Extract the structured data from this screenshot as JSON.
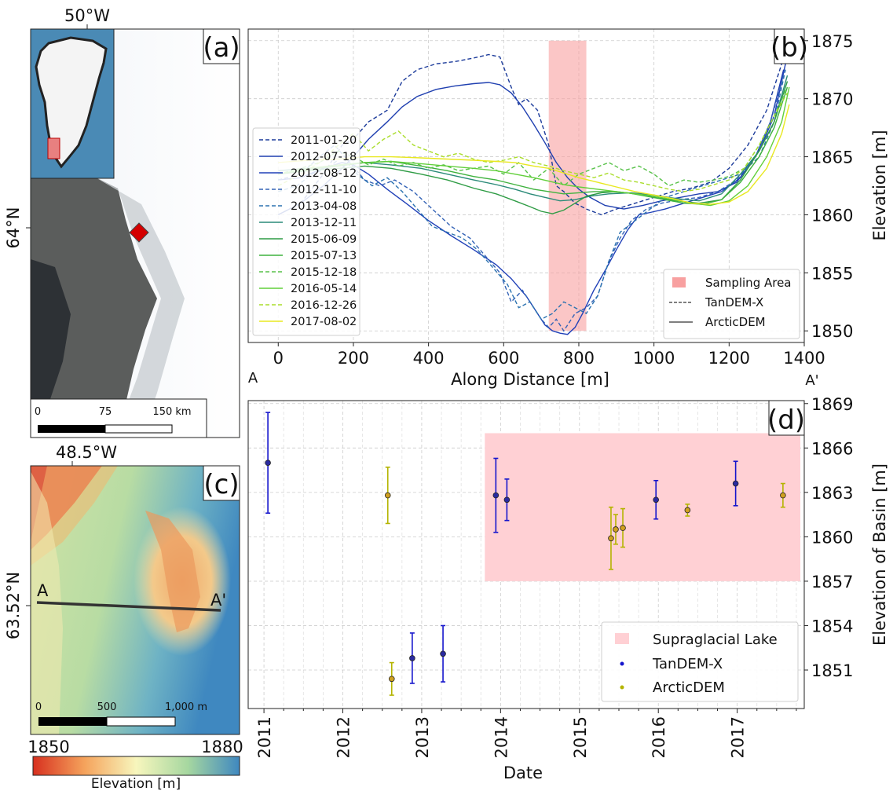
{
  "panel_a": {
    "tag": "(a)",
    "lon_label": "50°W",
    "lat_label": "64°N",
    "scalebar": {
      "labels": [
        "0",
        "75",
        "150 km"
      ]
    }
  },
  "panel_c": {
    "tag": "(c)",
    "lon_label": "48.5°W",
    "lat_label": "63.52°N",
    "profile_start": "A",
    "profile_end": "A'",
    "scalebar": {
      "labels": [
        "0",
        "500",
        "1,000 m"
      ]
    },
    "colorbar": {
      "min_label": "1850",
      "max_label": "1880",
      "label": "Elevation [m]"
    },
    "colors": {
      "low": "#d7301f",
      "mid": "#f7f6bd",
      "high": "#3f88c0"
    }
  },
  "chart_data": [
    {
      "id": "b",
      "tag": "(b)",
      "type": "line",
      "xlabel": "Along Distance [m]",
      "ylabel": "Elevation [m]",
      "xlim": [
        -80,
        1400
      ],
      "ylim": [
        1849,
        1876
      ],
      "xticks": [
        0,
        200,
        400,
        600,
        800,
        1000,
        1200,
        1400
      ],
      "yticks": [
        1850,
        1855,
        1860,
        1865,
        1870,
        1875
      ],
      "x_endpoints": {
        "start": "A",
        "end": "A'"
      },
      "grid": true,
      "sampling_area": {
        "x0": 720,
        "x1": 820,
        "color": "#f8a0a0"
      },
      "legend_right": {
        "position": "bottom-right",
        "items": [
          "Sampling Area",
          "TanDEM-X",
          "ArcticDEM"
        ]
      },
      "legend_left": {
        "position": "center-left"
      },
      "series": [
        {
          "name": "2011-01-20",
          "style": "dashed",
          "color": "#1b3a9a",
          "x": [
            0,
            60,
            120,
            170,
            200,
            240,
            290,
            330,
            370,
            420,
            470,
            520,
            560,
            590,
            620,
            640,
            660,
            690,
            720,
            740,
            760,
            790,
            820,
            860,
            900,
            950,
            1000,
            1050,
            1100,
            1150,
            1200,
            1250,
            1300,
            1340
          ],
          "y": [
            1860,
            1861,
            1863.5,
            1866,
            1866.5,
            1868,
            1869,
            1871.5,
            1872.5,
            1873,
            1873.2,
            1873.5,
            1873.8,
            1873.6,
            1871,
            1869.5,
            1870,
            1869,
            1866,
            1862.5,
            1862,
            1861,
            1860.5,
            1860,
            1860.5,
            1861,
            1861.5,
            1862,
            1862.3,
            1862.8,
            1864,
            1866,
            1869,
            1873
          ]
        },
        {
          "name": "2012-07-18",
          "style": "solid",
          "color": "#1f3fb0",
          "x": [
            0,
            60,
            120,
            170,
            200,
            240,
            290,
            330,
            370,
            420,
            470,
            520,
            560,
            590,
            620,
            650,
            680,
            710,
            740,
            770,
            800,
            830,
            870,
            920,
            970,
            1020,
            1070,
            1120,
            1170,
            1220,
            1270,
            1310,
            1345
          ],
          "y": [
            1860,
            1861,
            1862.5,
            1864,
            1865,
            1866.5,
            1868,
            1869.3,
            1870.2,
            1870.8,
            1871.1,
            1871.3,
            1871.4,
            1871.2,
            1870.5,
            1869.3,
            1867.8,
            1866.2,
            1864.5,
            1863.2,
            1862.2,
            1861.5,
            1860.8,
            1860.5,
            1860.8,
            1861.2,
            1861.5,
            1861.8,
            1862,
            1862.8,
            1865,
            1868,
            1872.5
          ]
        },
        {
          "name": "2012-08-12",
          "style": "solid",
          "color": "#2040b8",
          "x": [
            0,
            60,
            120,
            170,
            200,
            240,
            290,
            340,
            400,
            460,
            520,
            580,
            620,
            660,
            690,
            710,
            730,
            750,
            770,
            790,
            810,
            840,
            870,
            900,
            930,
            960,
            990,
            1030,
            1080,
            1130,
            1180,
            1230,
            1280,
            1320,
            1350
          ],
          "y": [
            1863,
            1863.2,
            1864,
            1864.5,
            1864.3,
            1863.5,
            1862.2,
            1861,
            1859.5,
            1858.2,
            1857,
            1855.7,
            1854.5,
            1853,
            1851.5,
            1850.5,
            1850,
            1849.8,
            1849.7,
            1850.3,
            1851.5,
            1853.5,
            1855.2,
            1857,
            1858.7,
            1860,
            1860.2,
            1860.5,
            1861,
            1861.5,
            1862,
            1863.2,
            1865.5,
            1868.5,
            1873
          ]
        },
        {
          "name": "2012-11-10",
          "style": "dashed",
          "color": "#3463b6",
          "x": [
            0,
            60,
            110,
            150,
            190,
            230,
            270,
            310,
            360,
            410,
            460,
            510,
            550,
            590,
            620,
            650,
            680,
            700,
            720,
            740,
            760,
            790,
            820,
            850,
            880,
            910,
            940,
            980,
            1020,
            1070,
            1120,
            1170,
            1220,
            1270,
            1310,
            1345
          ],
          "y": [
            1863,
            1863.5,
            1865,
            1866,
            1864.5,
            1863,
            1862.5,
            1863,
            1862,
            1860.5,
            1859,
            1858,
            1856.5,
            1855,
            1852.5,
            1853.5,
            1852,
            1851,
            1850.3,
            1851,
            1850,
            1851.5,
            1852,
            1853,
            1856,
            1858,
            1859.5,
            1860.5,
            1861,
            1861.3,
            1861.5,
            1862,
            1863,
            1865,
            1868,
            1872
          ]
        },
        {
          "name": "2013-04-08",
          "style": "dashed",
          "color": "#2b72b0",
          "x": [
            0,
            50,
            90,
            130,
            170,
            210,
            250,
            290,
            330,
            370,
            410,
            450,
            490,
            530,
            570,
            610,
            640,
            670,
            700,
            730,
            760,
            790,
            820,
            850,
            880,
            910,
            950,
            990,
            1030,
            1080,
            1130,
            1180,
            1230,
            1280,
            1320,
            1350
          ],
          "y": [
            1862,
            1862.5,
            1863.5,
            1864,
            1865,
            1863.5,
            1862.5,
            1863.2,
            1862,
            1860.5,
            1859,
            1858.5,
            1858,
            1857,
            1855.5,
            1854,
            1852,
            1852.5,
            1851,
            1851.5,
            1852.5,
            1852,
            1851.5,
            1853,
            1856,
            1858.5,
            1859.5,
            1860.5,
            1861.5,
            1862,
            1862.5,
            1863,
            1863.5,
            1865,
            1868,
            1872.5
          ]
        },
        {
          "name": "2013-12-11",
          "style": "solid",
          "color": "#2a8a78",
          "x": [
            0,
            80,
            160,
            230,
            300,
            380,
            450,
            520,
            580,
            630,
            670,
            710,
            750,
            790,
            830,
            880,
            940,
            1000,
            1060,
            1120,
            1180,
            1230,
            1280,
            1320,
            1355
          ],
          "y": [
            1863.8,
            1864,
            1864.2,
            1864.5,
            1864.3,
            1864,
            1863.5,
            1863,
            1862.6,
            1862.2,
            1861.8,
            1861.5,
            1861.2,
            1861.3,
            1861.6,
            1861.8,
            1861.9,
            1861.7,
            1861.4,
            1861.2,
            1861.8,
            1863.5,
            1865.5,
            1868,
            1872
          ]
        },
        {
          "name": "2015-06-09",
          "style": "solid",
          "color": "#2f9c45",
          "x": [
            0,
            80,
            160,
            230,
            300,
            380,
            450,
            520,
            580,
            630,
            670,
            700,
            730,
            760,
            790,
            820,
            860,
            900,
            950,
            1000,
            1060,
            1120,
            1180,
            1230,
            1280,
            1320,
            1355
          ],
          "y": [
            1863.5,
            1863.8,
            1864,
            1864.2,
            1864,
            1863.5,
            1863,
            1862.3,
            1861.8,
            1861.2,
            1860.7,
            1860.3,
            1860.1,
            1860.4,
            1861,
            1861.6,
            1861.9,
            1862,
            1861.8,
            1861.5,
            1861.2,
            1861,
            1861.3,
            1863,
            1865.5,
            1868,
            1871.5
          ]
        },
        {
          "name": "2015-07-13",
          "style": "solid",
          "color": "#3fb23e",
          "x": [
            0,
            80,
            160,
            230,
            300,
            380,
            450,
            520,
            580,
            630,
            680,
            720,
            760,
            800,
            840,
            880,
            930,
            980,
            1030,
            1080,
            1130,
            1180,
            1230,
            1280,
            1320,
            1355
          ],
          "y": [
            1863.5,
            1863.9,
            1864.2,
            1864.5,
            1864.6,
            1864.2,
            1863.8,
            1863.3,
            1863,
            1862.6,
            1862.2,
            1862,
            1861.8,
            1861.9,
            1862,
            1862,
            1861.9,
            1861.6,
            1861.3,
            1861,
            1860.9,
            1861.3,
            1862.8,
            1865,
            1867.5,
            1871
          ]
        },
        {
          "name": "2015-12-18",
          "style": "dashed",
          "color": "#58c24a",
          "x": [
            0,
            60,
            110,
            160,
            200,
            240,
            280,
            320,
            360,
            400,
            440,
            480,
            520,
            560,
            600,
            640,
            680,
            720,
            760,
            800,
            840,
            880,
            920,
            960,
            1000,
            1040,
            1080,
            1120,
            1160,
            1200,
            1240,
            1280,
            1320,
            1355
          ],
          "y": [
            1863.5,
            1864,
            1864.5,
            1865.5,
            1865,
            1864.3,
            1864.8,
            1864.2,
            1864.5,
            1864,
            1864.3,
            1863.8,
            1864,
            1864.2,
            1863.5,
            1864.5,
            1863,
            1864,
            1862.5,
            1863.5,
            1864,
            1864.5,
            1863.8,
            1864.2,
            1863.5,
            1862.5,
            1863,
            1862.8,
            1863,
            1863.3,
            1864,
            1866,
            1868.5,
            1871
          ]
        },
        {
          "name": "2016-05-14",
          "style": "solid",
          "color": "#61cf3a",
          "x": [
            0,
            80,
            160,
            230,
            300,
            380,
            450,
            520,
            580,
            630,
            680,
            720,
            760,
            800,
            850,
            900,
            950,
            1000,
            1050,
            1100,
            1150,
            1200,
            1250,
            1300,
            1340,
            1360
          ],
          "y": [
            1863.5,
            1864,
            1864.3,
            1864.5,
            1864.6,
            1864.4,
            1864.2,
            1864,
            1863.8,
            1863.5,
            1863.2,
            1862.9,
            1862.6,
            1862.4,
            1862.2,
            1862,
            1861.8,
            1861.6,
            1861.3,
            1861,
            1860.8,
            1861.2,
            1862.5,
            1865,
            1868,
            1871
          ]
        },
        {
          "name": "2016-12-26",
          "style": "dashed",
          "color": "#aadd2c",
          "x": [
            0,
            60,
            110,
            160,
            200,
            240,
            280,
            320,
            360,
            400,
            440,
            480,
            520,
            560,
            600,
            640,
            680,
            720,
            760,
            800,
            840,
            880,
            920,
            960,
            1000,
            1040,
            1080,
            1120,
            1160,
            1200,
            1240,
            1280,
            1320,
            1355
          ],
          "y": [
            1862.5,
            1863.5,
            1864.5,
            1866,
            1867,
            1865.5,
            1866.5,
            1867.2,
            1866,
            1865.5,
            1865,
            1865.3,
            1864.8,
            1864.5,
            1864.7,
            1865,
            1864.5,
            1864.2,
            1863.8,
            1863.5,
            1863.2,
            1863.6,
            1863,
            1862.8,
            1862.5,
            1862.2,
            1862,
            1862.2,
            1862.6,
            1863,
            1864,
            1866,
            1868.5,
            1870.5
          ]
        },
        {
          "name": "2017-08-02",
          "style": "solid",
          "color": "#e8e820",
          "x": [
            0,
            80,
            160,
            230,
            300,
            380,
            450,
            520,
            580,
            630,
            680,
            720,
            760,
            800,
            850,
            900,
            950,
            1000,
            1050,
            1100,
            1150,
            1200,
            1250,
            1300,
            1340,
            1360
          ],
          "y": [
            1864.5,
            1864.7,
            1864.8,
            1865,
            1865,
            1864.9,
            1864.8,
            1864.7,
            1864.6,
            1864.5,
            1864.2,
            1864,
            1863.6,
            1863.2,
            1862.8,
            1862.4,
            1862,
            1861.7,
            1861.4,
            1861,
            1860.9,
            1861.1,
            1862,
            1864,
            1867,
            1869.5
          ]
        }
      ]
    },
    {
      "id": "d",
      "tag": "(d)",
      "type": "scatter",
      "xlabel": "Date",
      "ylabel": "Elevation of Basin [m]",
      "xlim": [
        2010.8,
        2017.85
      ],
      "ylim": [
        1848.4,
        1869.2
      ],
      "xticks": [
        2011,
        2012,
        2013,
        2014,
        2015,
        2016,
        2017
      ],
      "yticks": [
        1851,
        1854,
        1857,
        1860,
        1863,
        1866,
        1869
      ],
      "grid": true,
      "shaded_region": {
        "name": "Supraglacial Lake",
        "x0": 2013.8,
        "x1": 2017.8,
        "y0": 1857,
        "y1": 1867,
        "color": "#ffd0d4"
      },
      "legend": {
        "position": "bottom-right",
        "items": [
          "Supraglacial Lake",
          "TanDEM-X",
          "ArcticDEM"
        ]
      },
      "series": [
        {
          "name": "TanDEM-X",
          "color": "#1515cc",
          "marker_fill": "#2a2aa0",
          "points": [
            {
              "x": 2011.05,
              "y": 1865.0,
              "err": 3.4
            },
            {
              "x": 2012.88,
              "y": 1851.8,
              "err": 1.7
            },
            {
              "x": 2013.27,
              "y": 1852.1,
              "err": 1.9
            },
            {
              "x": 2013.94,
              "y": 1862.8,
              "err": 2.5
            },
            {
              "x": 2014.08,
              "y": 1862.5,
              "err": 1.4
            },
            {
              "x": 2015.97,
              "y": 1862.5,
              "err": 1.3
            },
            {
              "x": 2016.98,
              "y": 1863.6,
              "err": 1.5
            }
          ]
        },
        {
          "name": "ArcticDEM",
          "color": "#b4b400",
          "marker_fill": "#d0a020",
          "points": [
            {
              "x": 2012.57,
              "y": 1862.8,
              "err": 1.9
            },
            {
              "x": 2012.62,
              "y": 1850.4,
              "err": 1.1
            },
            {
              "x": 2015.4,
              "y": 1859.9,
              "err": 2.1
            },
            {
              "x": 2015.46,
              "y": 1860.5,
              "err": 1.0
            },
            {
              "x": 2015.55,
              "y": 1860.6,
              "err": 1.3
            },
            {
              "x": 2016.37,
              "y": 1861.8,
              "err": 0.4
            },
            {
              "x": 2017.58,
              "y": 1862.8,
              "err": 0.8
            }
          ]
        }
      ]
    }
  ]
}
